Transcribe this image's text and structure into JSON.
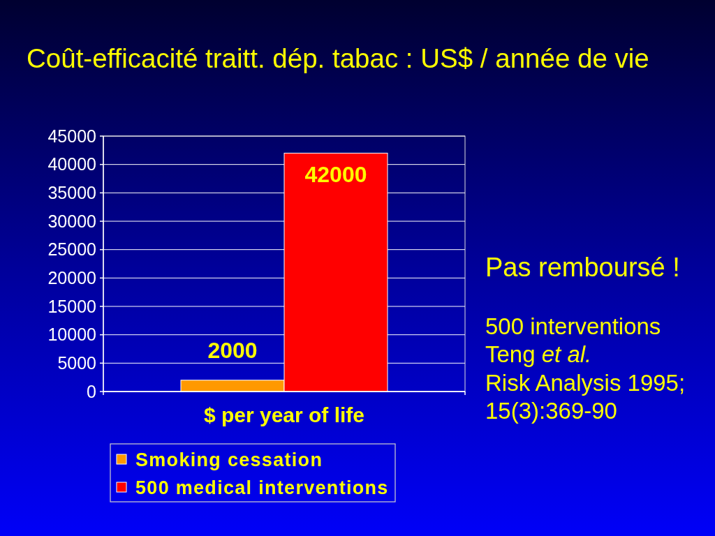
{
  "chart_data": {
    "type": "bar",
    "title": "Coût-efficacité traitt. dép. tabac : US$ / année de vie",
    "categories": [
      "$ per year of life"
    ],
    "series": [
      {
        "name": "Smoking cessation",
        "color": "#ff9900",
        "values": [
          2000
        ]
      },
      {
        "name": "500 medical interventions",
        "color": "#ff0000",
        "values": [
          42000
        ]
      }
    ],
    "ylim": [
      0,
      45000
    ],
    "yticks": [
      0,
      5000,
      10000,
      15000,
      20000,
      25000,
      30000,
      35000,
      40000,
      45000
    ],
    "grid": "y",
    "data_labels": true,
    "legend": "bottom",
    "annotations": [
      "Pas remboursé !",
      "500 interventions",
      "Teng",
      "et al.",
      "Risk Analysis 1995;",
      "15(3):369-90"
    ]
  }
}
